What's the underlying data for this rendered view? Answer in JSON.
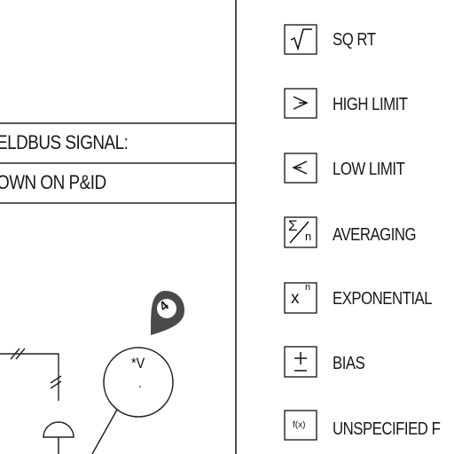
{
  "notes": {
    "line1": "ELDBUS SIGNAL:",
    "line2": "OWN ON P&ID"
  },
  "legend": [
    {
      "symbol": "√",
      "label": "SQ RT",
      "icon": "square-root-icon"
    },
    {
      "symbol": ">",
      "label": "HIGH LIMIT",
      "icon": "high-limit-icon"
    },
    {
      "symbol": "<",
      "label": "LOW LIMIT",
      "icon": "low-limit-icon"
    },
    {
      "symbol": "Σ/n",
      "label": "AVERAGING",
      "icon": "averaging-icon"
    },
    {
      "symbol": "xⁿ",
      "label": "EXPONENTIAL",
      "icon": "exponential-icon"
    },
    {
      "symbol": "±",
      "label": "BIAS",
      "icon": "bias-icon"
    },
    {
      "symbol": "f(x)",
      "label": "UNSPECIFIED F",
      "icon": "function-icon"
    }
  ],
  "instrument": {
    "tag": "*V",
    "flag_label": "4"
  }
}
